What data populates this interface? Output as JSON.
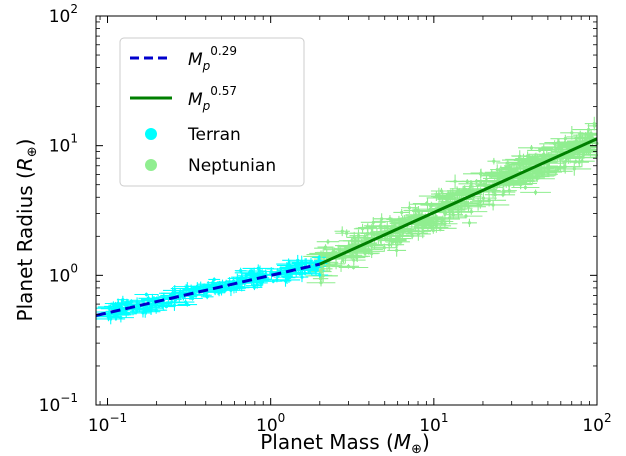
{
  "chart_data": {
    "type": "scatter",
    "x_scale": "log",
    "y_scale": "log",
    "xlim": [
      0.085,
      100
    ],
    "ylim": [
      0.1,
      100
    ],
    "x_ticks": [
      {
        "value": 0.1,
        "base": "10",
        "exp": "−1"
      },
      {
        "value": 1,
        "base": "10",
        "exp": "0"
      },
      {
        "value": 10,
        "base": "10",
        "exp": "1"
      },
      {
        "value": 100,
        "base": "10",
        "exp": "2"
      }
    ],
    "y_ticks": [
      {
        "value": 0.1,
        "base": "10",
        "exp": "−1"
      },
      {
        "value": 1,
        "base": "10",
        "exp": "0"
      },
      {
        "value": 10,
        "base": "10",
        "exp": "1"
      },
      {
        "value": 100,
        "base": "10",
        "exp": "2"
      }
    ],
    "xlabel": {
      "text": "Planet Mass (",
      "sym": "M",
      "sub": "⊕",
      "close": ")"
    },
    "ylabel": {
      "text": "Planet Radius (",
      "sym": "R",
      "sub": "⊕",
      "close": ")"
    },
    "grid": false,
    "legend_position": "top-left",
    "series": [
      {
        "name": "Terran",
        "kind": "scatter",
        "color": "#00ffff",
        "x_range": [
          0.1,
          2.0
        ],
        "relation": {
          "coef": 1.0,
          "exponent": 0.29
        }
      },
      {
        "name": "Neptunian",
        "kind": "scatter",
        "color": "#90ee90",
        "x_range": [
          2.0,
          100
        ],
        "relation": {
          "coef": 0.82,
          "exponent": 0.57
        }
      },
      {
        "name": "M_p^0.29",
        "kind": "line",
        "style": "dashed",
        "color": "#0000cd",
        "label_base": "M",
        "label_sub": "p",
        "label_exp": "0.29",
        "x": [
          0.085,
          2.0
        ],
        "y": [
          0.49,
          1.22
        ]
      },
      {
        "name": "M_p^0.57",
        "kind": "line",
        "style": "solid",
        "color": "#007f00",
        "label_base": "M",
        "label_sub": "p",
        "label_exp": "0.57",
        "x": [
          2.0,
          100
        ],
        "y": [
          1.22,
          11.3
        ]
      }
    ]
  }
}
